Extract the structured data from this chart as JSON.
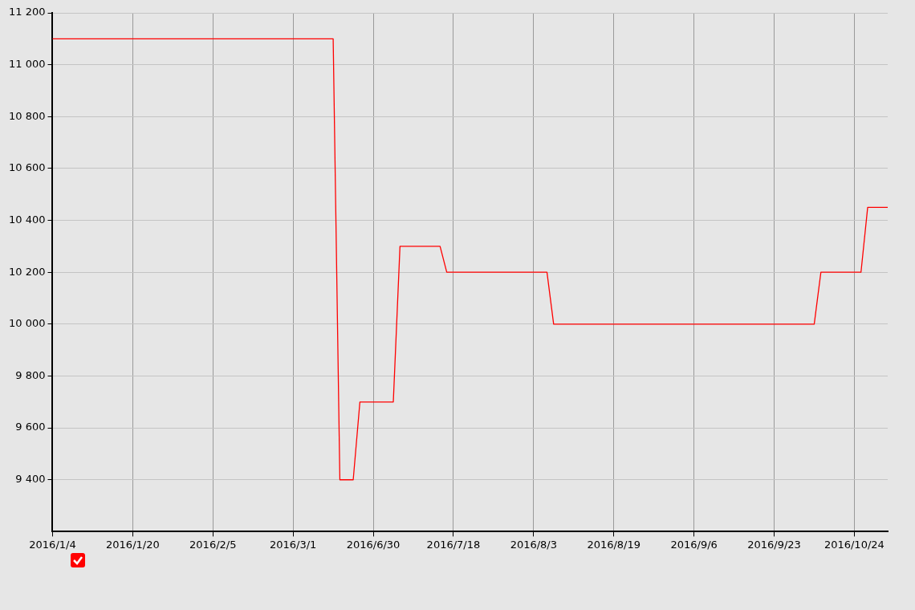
{
  "chart_data": {
    "type": "line",
    "categories": [
      "2016/1/4",
      null,
      null,
      null,
      null,
      null,
      null,
      null,
      null,
      null,
      null,
      null,
      "2016/1/20",
      null,
      null,
      null,
      null,
      null,
      null,
      null,
      null,
      null,
      null,
      null,
      "2016/2/5",
      null,
      null,
      null,
      null,
      null,
      null,
      null,
      null,
      null,
      null,
      null,
      "2016/3/1",
      null,
      null,
      null,
      null,
      null,
      null,
      null,
      null,
      null,
      null,
      null,
      "2016/6/30",
      null,
      null,
      null,
      null,
      null,
      null,
      null,
      null,
      null,
      null,
      null,
      "2016/7/18",
      null,
      null,
      null,
      null,
      null,
      null,
      null,
      null,
      null,
      null,
      null,
      "2016/8/3",
      null,
      null,
      null,
      null,
      null,
      null,
      null,
      null,
      null,
      null,
      null,
      "2016/8/19",
      null,
      null,
      null,
      null,
      null,
      null,
      null,
      null,
      null,
      null,
      null,
      "2016/9/6",
      null,
      null,
      null,
      null,
      null,
      null,
      null,
      null,
      null,
      null,
      null,
      "2016/9/23",
      null,
      null,
      null,
      null,
      null,
      null,
      null,
      null,
      null,
      null,
      null,
      "2016/10/24",
      null,
      null,
      null,
      null,
      null
    ],
    "series": [
      {
        "color": "#ff0000",
        "values": [
          11100,
          11100,
          11100,
          11100,
          11100,
          11100,
          11100,
          11100,
          11100,
          11100,
          11100,
          11100,
          11100,
          11100,
          11100,
          11100,
          11100,
          11100,
          11100,
          11100,
          11100,
          11100,
          11100,
          11100,
          11100,
          11100,
          11100,
          11100,
          11100,
          11100,
          11100,
          11100,
          11100,
          11100,
          11100,
          11100,
          11100,
          11100,
          11100,
          11100,
          11100,
          11100,
          11100,
          9400,
          9400,
          9400,
          9700,
          9700,
          9700,
          9700,
          9700,
          9700,
          10300,
          10300,
          10300,
          10300,
          10300,
          10300,
          10300,
          10200,
          10200,
          10200,
          10200,
          10200,
          10200,
          10200,
          10200,
          10200,
          10200,
          10200,
          10200,
          10200,
          10200,
          10200,
          10200,
          10000,
          10000,
          10000,
          10000,
          10000,
          10000,
          10000,
          10000,
          10000,
          10000,
          10000,
          10000,
          10000,
          10000,
          10000,
          10000,
          10000,
          10000,
          10000,
          10000,
          10000,
          10000,
          10000,
          10000,
          10000,
          10000,
          10000,
          10000,
          10000,
          10000,
          10000,
          10000,
          10000,
          10000,
          10000,
          10000,
          10000,
          10000,
          10000,
          10000,
          10200,
          10200,
          10200,
          10200,
          10200,
          10200,
          10200,
          10450,
          10450,
          10450,
          10450
        ]
      }
    ],
    "ylim": [
      9200,
      11200
    ],
    "yticks": [
      {
        "value": 9400,
        "label": "9 400"
      },
      {
        "value": 9600,
        "label": "9 600"
      },
      {
        "value": 9800,
        "label": "9 800"
      },
      {
        "value": 10000,
        "label": "10 000"
      },
      {
        "value": 10200,
        "label": "10 200"
      },
      {
        "value": 10400,
        "label": "10 400"
      },
      {
        "value": 10600,
        "label": "10 600"
      },
      {
        "value": 10800,
        "label": "10 800"
      },
      {
        "value": 11000,
        "label": "11 000"
      },
      {
        "value": 11200,
        "label": "11 200"
      }
    ],
    "grid": true
  }
}
